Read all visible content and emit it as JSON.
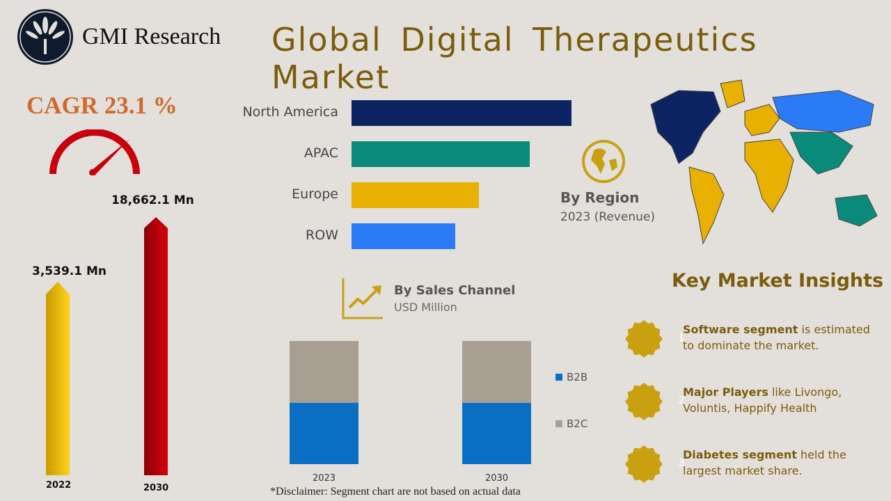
{
  "brand": {
    "name": "GMI Research"
  },
  "title": "Global  Digital  Therapeutics  Market",
  "cagr": "CAGR 23.1 %",
  "market_size": [
    {
      "year": "2022",
      "value": "3,539.1  Mn"
    },
    {
      "year": "2030",
      "value": "18,662.1 Mn"
    }
  ],
  "region": {
    "title": "By Region",
    "subtitle": "2023 (Revenue)"
  },
  "sales": {
    "title": "By Sales Channel",
    "subtitle": "USD Million"
  },
  "disclaimer": "*Disclaimer:   Segment chart are not based on actual data",
  "insights": {
    "title": "Key Market Insights",
    "items": [
      {
        "num": "1",
        "bold": "Software segment",
        "text": " is estimated to dominate the market."
      },
      {
        "num": "2",
        "bold": "Major  Players",
        "text": " like Livongo, Voluntis, Happify Health"
      },
      {
        "num": "3",
        "bold": "Diabetes segment",
        "text": " held the largest market share."
      }
    ]
  },
  "colors": {
    "north_america": "#0c2461",
    "apac": "#0a8a7a",
    "europe": "#e8b000",
    "row": "#2a7bf5",
    "b2b": "#0a6fc2",
    "b2c": "#a89f92",
    "title": "#7a5c0a",
    "cagr": "#d0692a",
    "badge": "#c9a010"
  },
  "chart_data": [
    {
      "type": "bar",
      "orientation": "horizontal",
      "categories": [
        "North America",
        "APAC",
        "Europe",
        "ROW"
      ],
      "values": [
        100,
        81,
        58,
        47
      ],
      "note_units": "relative"
    },
    {
      "type": "bar",
      "stacked": true,
      "categories": [
        "2023",
        "2030"
      ],
      "series": [
        {
          "name": "B2B",
          "values": [
            50,
            50
          ]
        },
        {
          "name": "B2C",
          "values": [
            50,
            50
          ]
        }
      ]
    },
    {
      "type": "bar",
      "categories": [
        "2022",
        "2030"
      ],
      "values": [
        3539.1,
        18662.1
      ]
    }
  ]
}
